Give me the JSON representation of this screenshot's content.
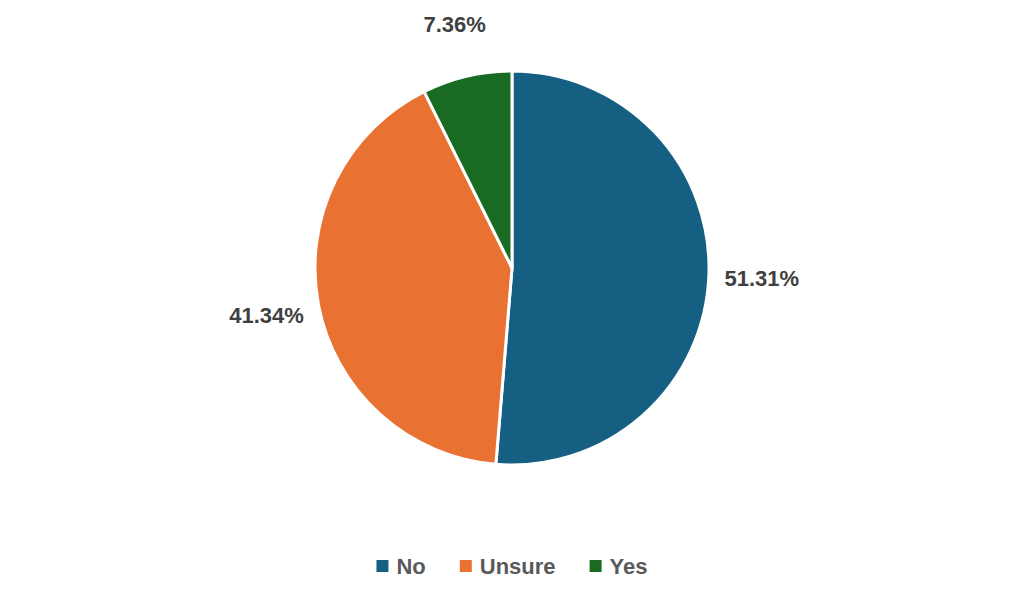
{
  "chart_data": {
    "type": "pie",
    "categories": [
      "No",
      "Unsure",
      "Yes"
    ],
    "values": [
      51.31,
      41.34,
      7.36
    ],
    "value_labels": [
      "51.31%",
      "41.34%",
      "7.36%"
    ],
    "colors": [
      "#156082",
      "#e97132",
      "#196b24"
    ],
    "data_labels": true,
    "legend": "bottom"
  }
}
